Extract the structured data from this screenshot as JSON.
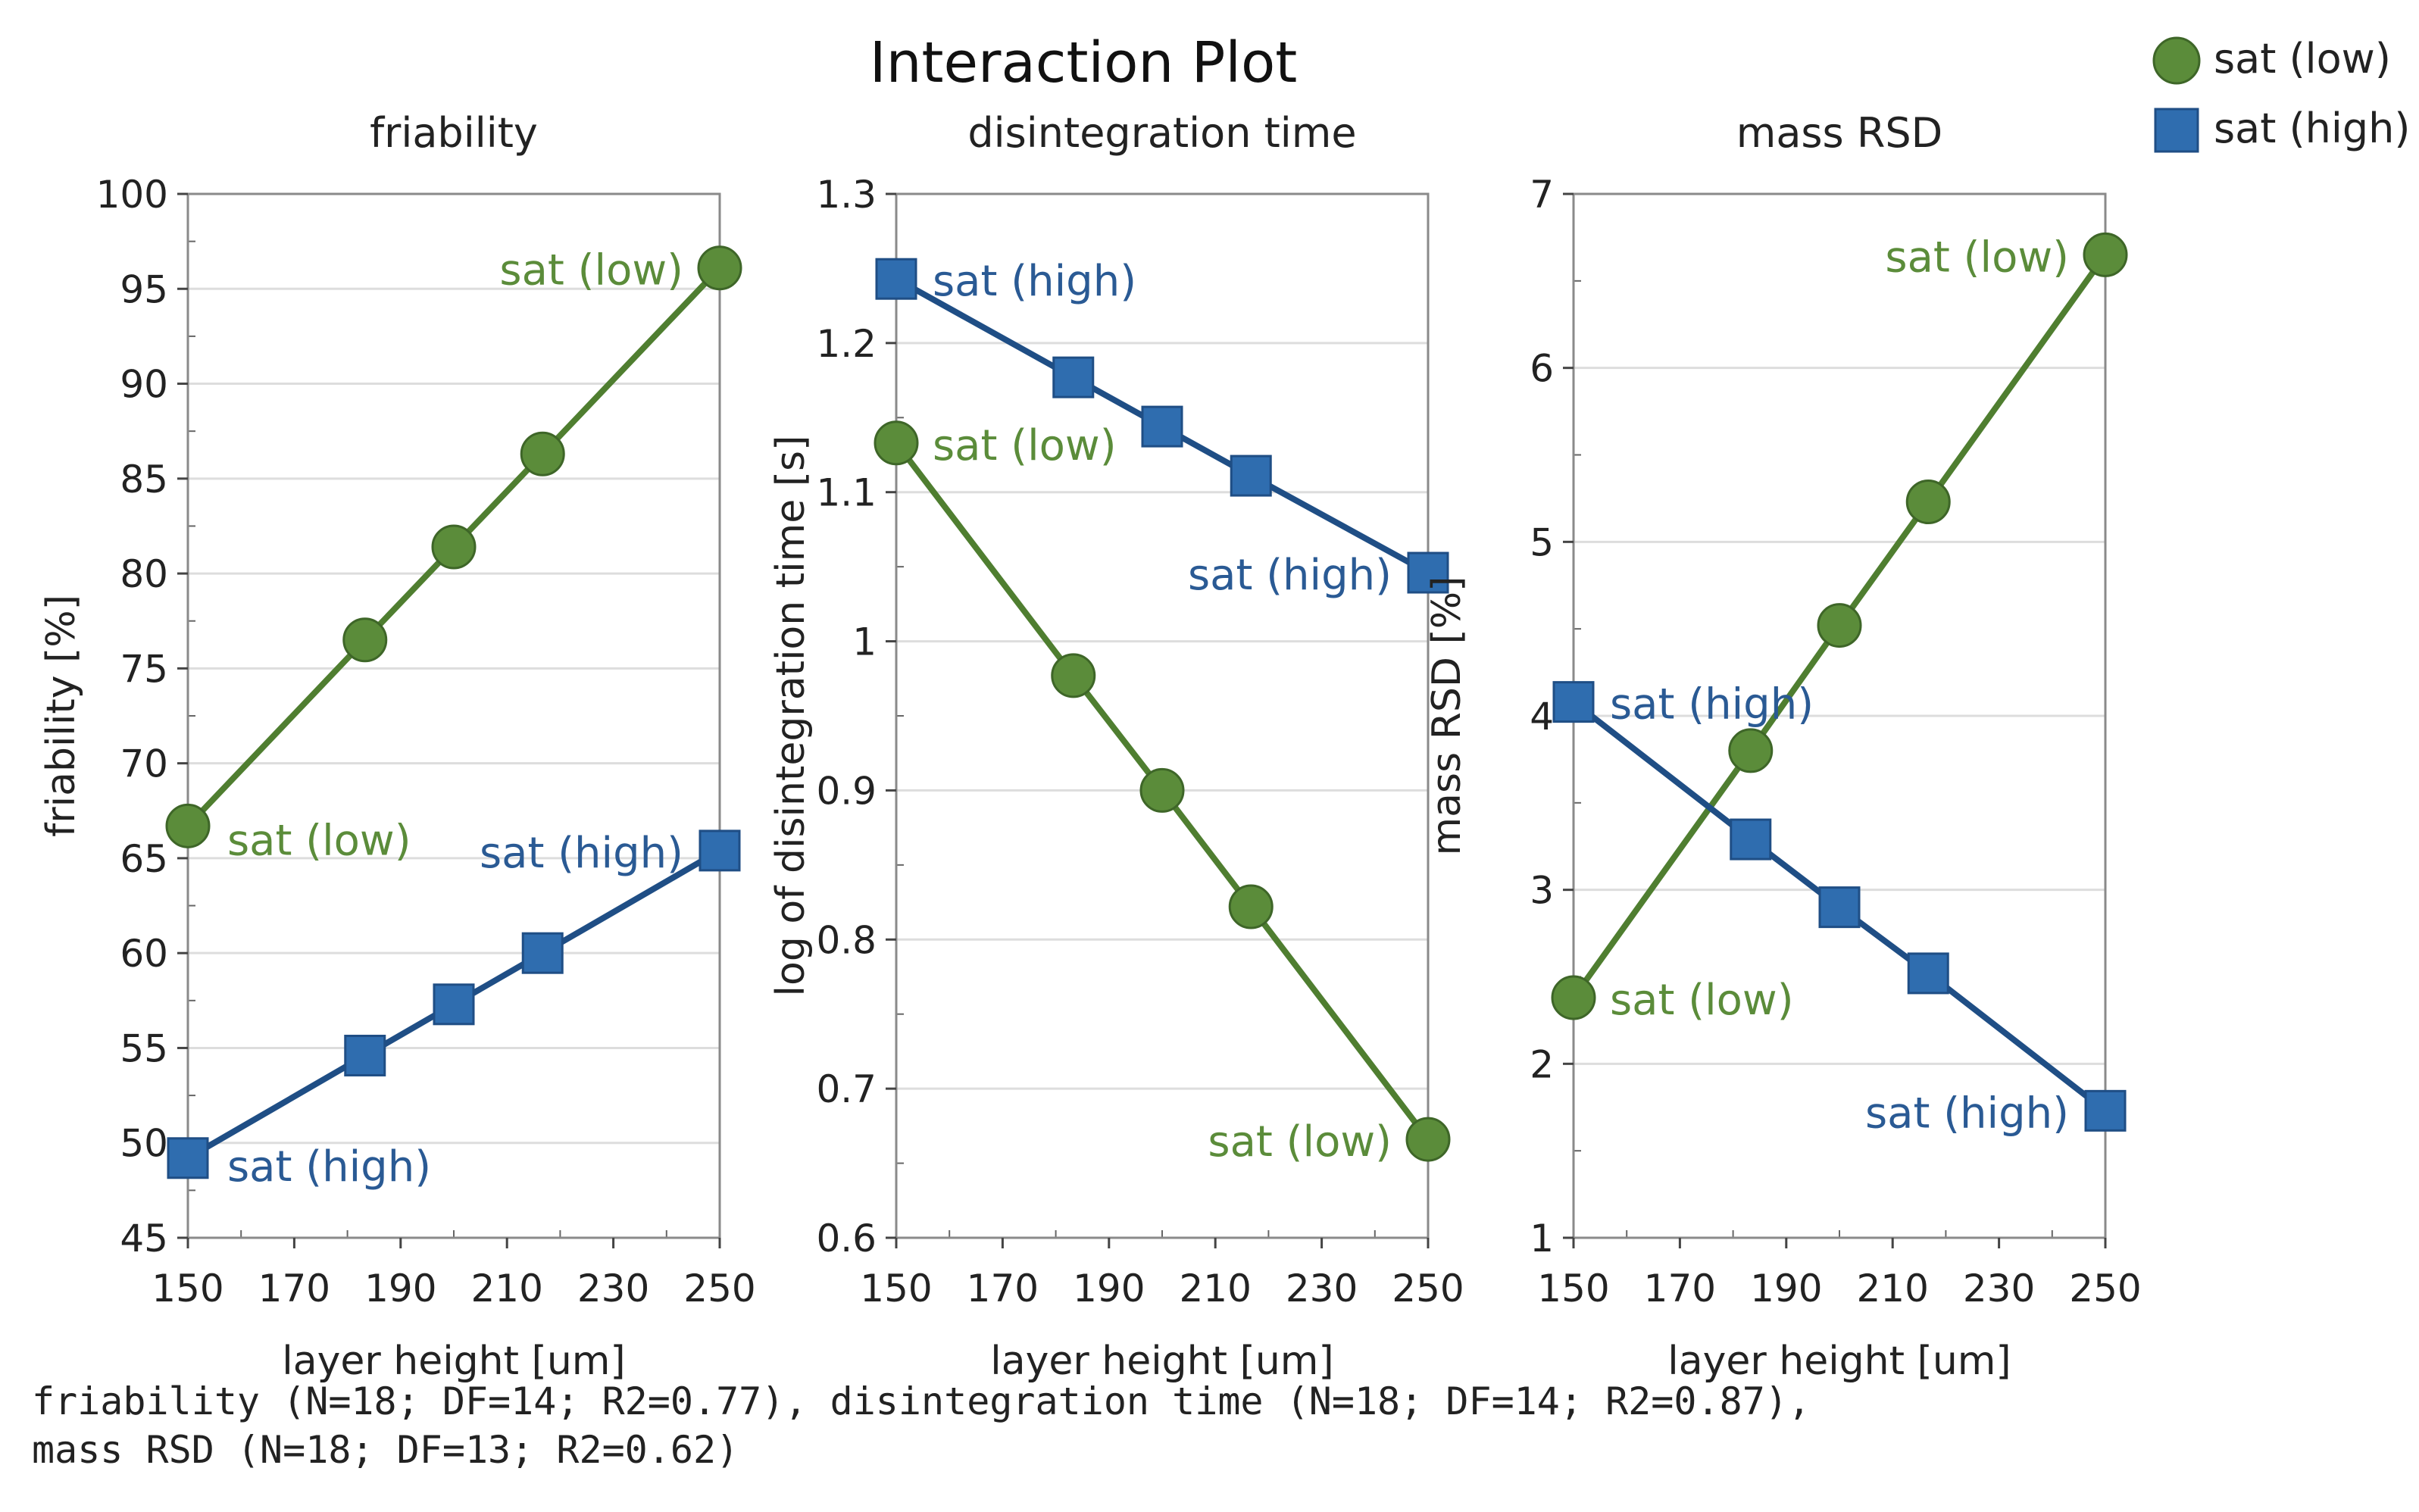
{
  "figure": {
    "title": "Interaction Plot",
    "stats_line_1": "friability (N=18; DF=14; R2=0.77), disintegration time (N=18; DF=14; R2=0.87),",
    "stats_line_2": "mass RSD (N=18; DF=13; R2=0.62)"
  },
  "legend": {
    "items": [
      {
        "label": "sat (low)",
        "marker": "circle",
        "color": "#5B8C3A"
      },
      {
        "label": "sat (high)",
        "marker": "square",
        "color": "#2F6DAF"
      }
    ]
  },
  "colors": {
    "low": "#5B8C3A",
    "low_line": "#4F7E30",
    "high": "#2F6DAF",
    "high_line": "#1F4E85",
    "low_text": "#5B8C3A",
    "high_text": "#2A5A94"
  },
  "chart_data": [
    {
      "type": "line",
      "title": "friability",
      "xlabel": "layer height [um]",
      "ylabel": "friability [%]",
      "xlim": [
        150,
        250
      ],
      "ylim": [
        45,
        100
      ],
      "x_ticks": [
        "150",
        "170",
        "190",
        "210",
        "230",
        "250"
      ],
      "y_ticks": [
        "45",
        "50",
        "55",
        "60",
        "65",
        "70",
        "75",
        "80",
        "85",
        "90",
        "95",
        "100"
      ],
      "grid": true,
      "series": [
        {
          "name": "sat (low)",
          "x": [
            150,
            183.3,
            200,
            216.7,
            250
          ],
          "values": [
            66.7,
            76.5,
            81.4,
            86.3,
            96.1
          ]
        },
        {
          "name": "sat (high)",
          "x": [
            150,
            183.3,
            200,
            216.7,
            250
          ],
          "values": [
            49.2,
            54.6,
            57.3,
            60.0,
            65.4
          ]
        }
      ],
      "annotations": [
        {
          "text": "sat (low)",
          "series": 0,
          "x": 150,
          "y": 66.7
        },
        {
          "text": "sat (low)",
          "series": 0,
          "x": 250,
          "y": 96.1
        },
        {
          "text": "sat (high)",
          "series": 1,
          "x": 150,
          "y": 49.2
        },
        {
          "text": "sat (high)",
          "series": 1,
          "x": 250,
          "y": 65.4
        }
      ]
    },
    {
      "type": "line",
      "title": "disintegration time",
      "xlabel": "layer height [um]",
      "ylabel": "log of disintegration time [s]",
      "xlim": [
        150,
        250
      ],
      "ylim": [
        0.6,
        1.3
      ],
      "x_ticks": [
        "150",
        "170",
        "190",
        "210",
        "230",
        "250"
      ],
      "y_ticks": [
        "0.6",
        "0.7",
        "0.8",
        "0.9",
        "1",
        "1.1",
        "1.2",
        "1.3"
      ],
      "grid": true,
      "series": [
        {
          "name": "sat (low)",
          "x": [
            150,
            183.3,
            200,
            216.7,
            250
          ],
          "values": [
            1.133,
            0.977,
            0.9,
            0.822,
            0.666
          ]
        },
        {
          "name": "sat (high)",
          "x": [
            150,
            183.3,
            200,
            216.7,
            250
          ],
          "values": [
            1.243,
            1.177,
            1.144,
            1.111,
            1.046
          ]
        }
      ],
      "annotations": [
        {
          "text": "sat (high)",
          "series": 1,
          "x": 150,
          "y": 1.243
        },
        {
          "text": "sat (low)",
          "series": 0,
          "x": 150,
          "y": 1.133
        },
        {
          "text": "sat (high)",
          "series": 1,
          "x": 250,
          "y": 1.046
        },
        {
          "text": "sat (low)",
          "series": 0,
          "x": 250,
          "y": 0.666
        }
      ]
    },
    {
      "type": "line",
      "title": "mass RSD",
      "xlabel": "layer height [um]",
      "ylabel": "mass RSD [%]",
      "xlim": [
        150,
        250
      ],
      "ylim": [
        1,
        7
      ],
      "x_ticks": [
        "150",
        "170",
        "190",
        "210",
        "230",
        "250"
      ],
      "y_ticks": [
        "1",
        "2",
        "3",
        "4",
        "5",
        "6",
        "7"
      ],
      "grid": true,
      "series": [
        {
          "name": "sat (low)",
          "x": [
            150,
            183.3,
            200,
            216.7,
            250
          ],
          "values": [
            2.38,
            3.8,
            4.52,
            5.23,
            6.65
          ]
        },
        {
          "name": "sat (high)",
          "x": [
            150,
            183.3,
            200,
            216.7,
            250
          ],
          "values": [
            4.08,
            3.29,
            2.9,
            2.52,
            1.73
          ]
        }
      ],
      "annotations": [
        {
          "text": "sat (low)",
          "series": 0,
          "x": 250,
          "y": 6.65
        },
        {
          "text": "sat (high)",
          "series": 1,
          "x": 150,
          "y": 4.08
        },
        {
          "text": "sat (low)",
          "series": 0,
          "x": 150,
          "y": 2.38
        },
        {
          "text": "sat (high)",
          "series": 1,
          "x": 250,
          "y": 1.73
        }
      ]
    }
  ]
}
